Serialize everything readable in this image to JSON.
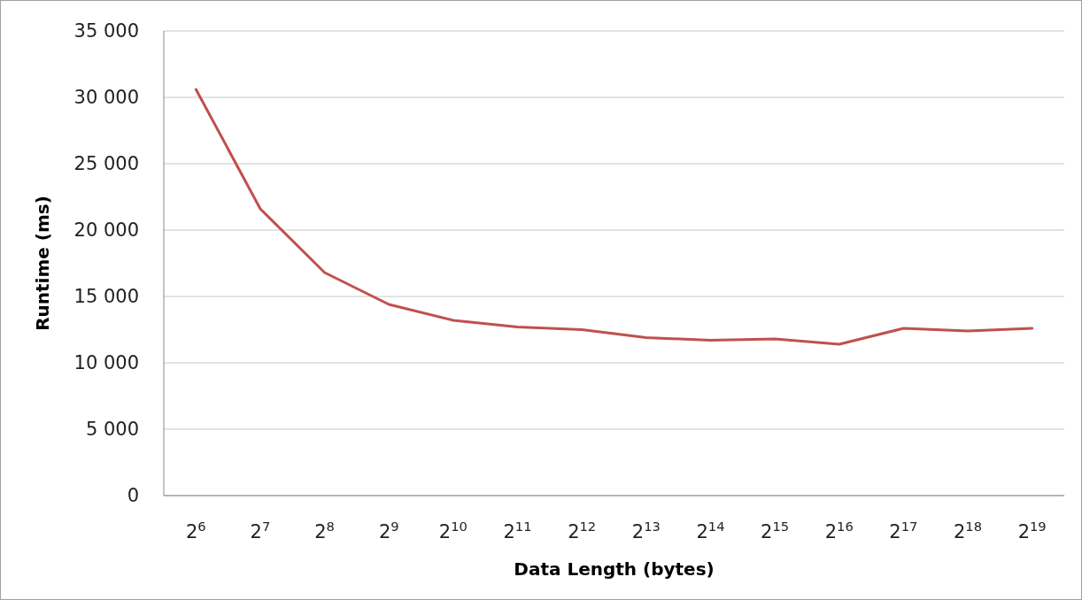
{
  "chart_data": {
    "type": "line",
    "xlabel": "Data Length (bytes)",
    "ylabel": "Runtime (ms)",
    "categories": [
      "2$^{6}$",
      "2$^{7}$",
      "2$^{8}$",
      "2$^{9}$",
      "2$^{10}$",
      "2$^{11}$",
      "2$^{12}$",
      "2$^{13}$",
      "2$^{14}$",
      "2$^{15}$",
      "2$^{16}$",
      "2$^{17}$",
      "2$^{18}$",
      "2$^{19}$"
    ],
    "series": [
      {
        "color": "#c0504d",
        "values": [
          30600,
          21600,
          16800,
          14400,
          13200,
          12700,
          12500,
          11900,
          11700,
          11800,
          11400,
          12600,
          12400,
          12600
        ]
      }
    ],
    "ylim": [
      0,
      35000
    ],
    "yticks": [
      0,
      {
        "value": 5000,
        "label": "5 000"
      },
      {
        "value": 10000,
        "label": "10 000"
      },
      {
        "value": 15000,
        "label": "15 000"
      },
      {
        "value": 20000,
        "label": "20 000"
      },
      {
        "value": 25000,
        "label": "25 000"
      },
      {
        "value": 30000,
        "label": "30 000"
      },
      {
        "value": 35000,
        "label": "35 000"
      }
    ],
    "grid": "y",
    "marker": "none",
    "line_style": "solid"
  }
}
